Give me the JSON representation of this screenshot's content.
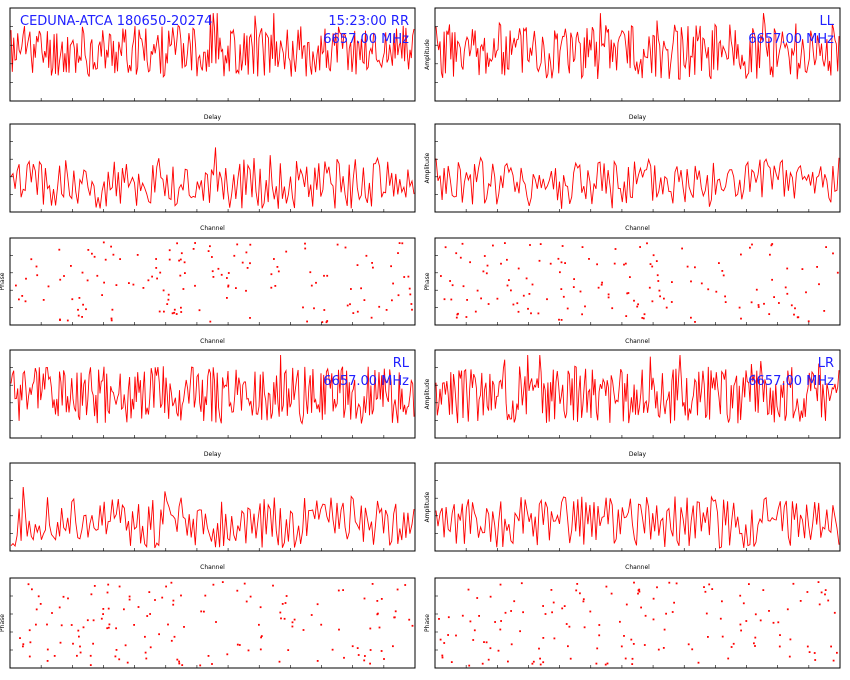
{
  "header": {
    "source": "CEDUNA-ATCA 180650-20274",
    "time": "15:23:00",
    "freq": "6657.00 MHz"
  },
  "colors": {
    "trace": "#ff0000",
    "annotation": "#2020ff",
    "frame": "#000000"
  },
  "chart_data": [
    {
      "type": "line",
      "pol": "RR",
      "panel": "amp-delay",
      "xlabel": "Delay",
      "ylabel": "",
      "xlim": [
        -256,
        256
      ],
      "ylim": [
        0,
        4
      ],
      "series": [
        {
          "values": []
        }
      ],
      "n": 300,
      "seed": 11,
      "base": 2.2,
      "noise": 1.2
    },
    {
      "type": "line",
      "pol": "LL",
      "panel": "amp-delay",
      "xlabel": "Delay",
      "ylabel": "Amplitude",
      "xlim": [
        -256,
        256
      ],
      "ylim": [
        0,
        4
      ],
      "series": [
        {
          "values": []
        }
      ],
      "n": 300,
      "seed": 23,
      "base": 2.2,
      "noise": 1.3
    },
    {
      "type": "line",
      "pol": "RR",
      "panel": "amp-channel",
      "xlabel": "Channel",
      "ylabel": "",
      "xlim": [
        0,
        512
      ],
      "ylim": [
        0,
        5
      ],
      "series": [
        {
          "values": []
        }
      ],
      "n": 200,
      "seed": 37,
      "base": 1.6,
      "noise": 1.6
    },
    {
      "type": "line",
      "pol": "LL",
      "panel": "amp-channel",
      "xlabel": "Channel",
      "ylabel": "Amplitude",
      "xlim": [
        0,
        512
      ],
      "ylim": [
        0,
        5
      ],
      "series": [
        {
          "values": []
        }
      ],
      "n": 200,
      "seed": 41,
      "base": 1.6,
      "noise": 1.6
    },
    {
      "type": "scatter",
      "pol": "RR",
      "panel": "phase-channel",
      "xlabel": "Channel",
      "ylabel": "Phase",
      "xlim": [
        0,
        512
      ],
      "ylim": [
        -180,
        180
      ],
      "n": 150,
      "seed": 53
    },
    {
      "type": "scatter",
      "pol": "LL",
      "panel": "phase-channel",
      "xlabel": "Channel",
      "ylabel": "Phase",
      "xlim": [
        0,
        512
      ],
      "ylim": [
        -180,
        180
      ],
      "n": 150,
      "seed": 59
    },
    {
      "type": "line",
      "pol": "RL",
      "panel": "amp-delay",
      "xlabel": "Delay",
      "ylabel": "",
      "xlim": [
        -256,
        256
      ],
      "ylim": [
        0,
        4
      ],
      "series": [
        {
          "values": []
        }
      ],
      "n": 300,
      "seed": 61,
      "base": 2.0,
      "noise": 1.4
    },
    {
      "type": "line",
      "pol": "LR",
      "panel": "amp-delay",
      "xlabel": "Delay",
      "ylabel": "Amplitude",
      "xlim": [
        -256,
        256
      ],
      "ylim": [
        0,
        4
      ],
      "series": [
        {
          "values": []
        }
      ],
      "n": 300,
      "seed": 67,
      "base": 2.0,
      "noise": 1.4
    },
    {
      "type": "line",
      "pol": "RL",
      "panel": "amp-channel",
      "xlabel": "Channel",
      "ylabel": "",
      "xlim": [
        0,
        512
      ],
      "ylim": [
        0,
        5
      ],
      "series": [
        {
          "values": []
        }
      ],
      "n": 200,
      "seed": 71,
      "base": 1.6,
      "noise": 1.6
    },
    {
      "type": "line",
      "pol": "LR",
      "panel": "amp-channel",
      "xlabel": "Channel",
      "ylabel": "Amplitude",
      "xlim": [
        0,
        512
      ],
      "ylim": [
        0,
        5
      ],
      "series": [
        {
          "values": []
        }
      ],
      "n": 200,
      "seed": 73,
      "base": 1.6,
      "noise": 1.6
    },
    {
      "type": "scatter",
      "pol": "RL",
      "panel": "phase-channel",
      "xlabel": "Channel",
      "ylabel": "Phase",
      "xlim": [
        0,
        512
      ],
      "ylim": [
        -180,
        180
      ],
      "n": 150,
      "seed": 79
    },
    {
      "type": "scatter",
      "pol": "LR",
      "panel": "phase-channel",
      "xlabel": "Channel",
      "ylabel": "Phase",
      "xlim": [
        0,
        512
      ],
      "ylim": [
        -180,
        180
      ],
      "n": 150,
      "seed": 83
    }
  ]
}
